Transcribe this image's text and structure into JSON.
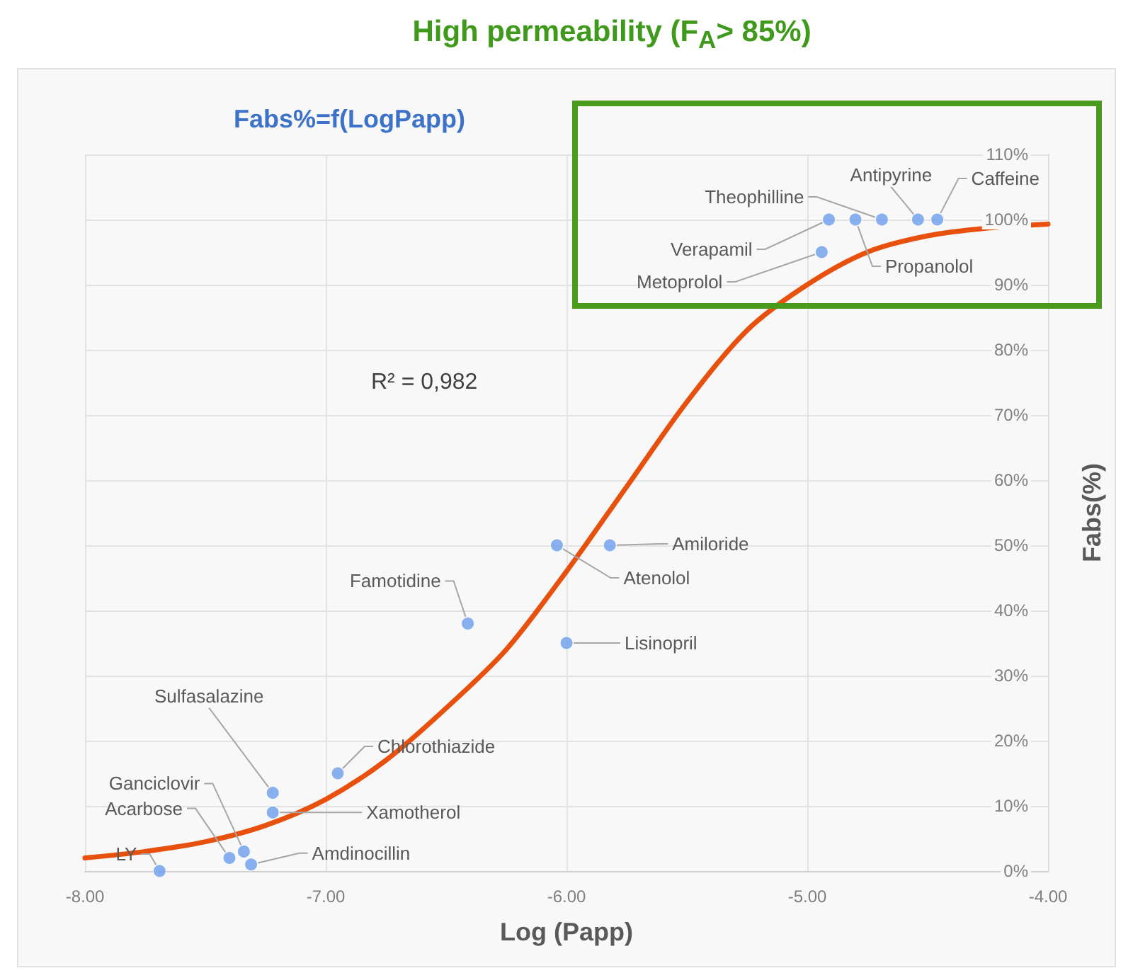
{
  "chart_data": {
    "type": "scatter",
    "title": "Fabs%=f(LogPapp)",
    "xlabel": "Log (Papp)",
    "ylabel": "Fabs(%)",
    "xlim": [
      -8,
      -4
    ],
    "xticks": [
      {
        "value": -8,
        "label": "-8.00"
      },
      {
        "value": -7,
        "label": "-7.00"
      },
      {
        "value": -6,
        "label": "-6.00"
      },
      {
        "value": -5,
        "label": "-5.00"
      },
      {
        "value": -4,
        "label": "-4.00"
      }
    ],
    "ylim": [
      0,
      110
    ],
    "yticks": [
      {
        "value": 0,
        "label": "0%"
      },
      {
        "value": 10,
        "label": "10%"
      },
      {
        "value": 20,
        "label": "20%"
      },
      {
        "value": 30,
        "label": "30%"
      },
      {
        "value": 40,
        "label": "40%"
      },
      {
        "value": 50,
        "label": "50%"
      },
      {
        "value": 60,
        "label": "60%"
      },
      {
        "value": 70,
        "label": "70%"
      },
      {
        "value": 80,
        "label": "80%"
      },
      {
        "value": 90,
        "label": "90%"
      },
      {
        "value": 100,
        "label": "100%"
      },
      {
        "value": 110,
        "label": "110%"
      }
    ],
    "grid": true,
    "marker": "circle",
    "series": [
      {
        "color": "#6d9eeb",
        "x": [
          -7.69,
          -7.4,
          -7.34,
          -7.31,
          -7.22,
          -7.22,
          -6.95,
          -6.41,
          -6.04,
          -6.0,
          -5.82,
          -4.94,
          -4.91,
          -4.8,
          -4.69,
          -4.54,
          -4.46
        ],
        "values": [
          0,
          2,
          3,
          1,
          12,
          9,
          15,
          38,
          50,
          35,
          50,
          95,
          100,
          100,
          100,
          100,
          100
        ]
      },
      {
        "type": "line",
        "color": "#e8500e",
        "marker": "none",
        "line_style": "solid",
        "x": [
          -8,
          -7.75,
          -7.5,
          -7.25,
          -7,
          -6.75,
          -6.5,
          -6.25,
          -6,
          -5.75,
          -5.5,
          -5.25,
          -5,
          -4.75,
          -4.5,
          -4.25,
          -4
        ],
        "values": [
          2,
          3,
          4.5,
          7,
          11,
          17,
          25,
          34,
          46,
          59,
          72,
          83,
          90,
          95,
          97.5,
          98.7,
          99.3
        ]
      }
    ],
    "annotations": [
      "High permeability (F$_{A}$> 85%)",
      "R² = 0,982",
      {
        "text": "LY",
        "x": -7.69,
        "y": 0
      },
      {
        "text": "Acarbose",
        "x": -7.4,
        "y": 2
      },
      {
        "text": "Ganciclovir",
        "x": -7.34,
        "y": 3
      },
      {
        "text": "Amdinocillin",
        "x": -7.31,
        "y": 1
      },
      {
        "text": "Sulfasalazine",
        "x": -7.22,
        "y": 12
      },
      {
        "text": "Xamotherol",
        "x": -7.22,
        "y": 9
      },
      {
        "text": "Chlorothiazide",
        "x": -6.95,
        "y": 15
      },
      {
        "text": "Famotidine",
        "x": -6.41,
        "y": 38
      },
      {
        "text": "Atenolol",
        "x": -6.04,
        "y": 50
      },
      {
        "text": "Lisinopril",
        "x": -6.0,
        "y": 35
      },
      {
        "text": "Amiloride",
        "x": -5.82,
        "y": 50
      },
      {
        "text": "Metoprolol",
        "x": -4.94,
        "y": 95
      },
      {
        "text": "Verapamil",
        "x": -4.91,
        "y": 100
      },
      {
        "text": "Propanolol",
        "x": -4.8,
        "y": 100
      },
      {
        "text": "Theophilline",
        "x": -4.69,
        "y": 100
      },
      {
        "text": "Antipyrine",
        "x": -4.54,
        "y": 100
      },
      {
        "text": "Caffeine",
        "x": -4.46,
        "y": 100
      }
    ]
  }
}
